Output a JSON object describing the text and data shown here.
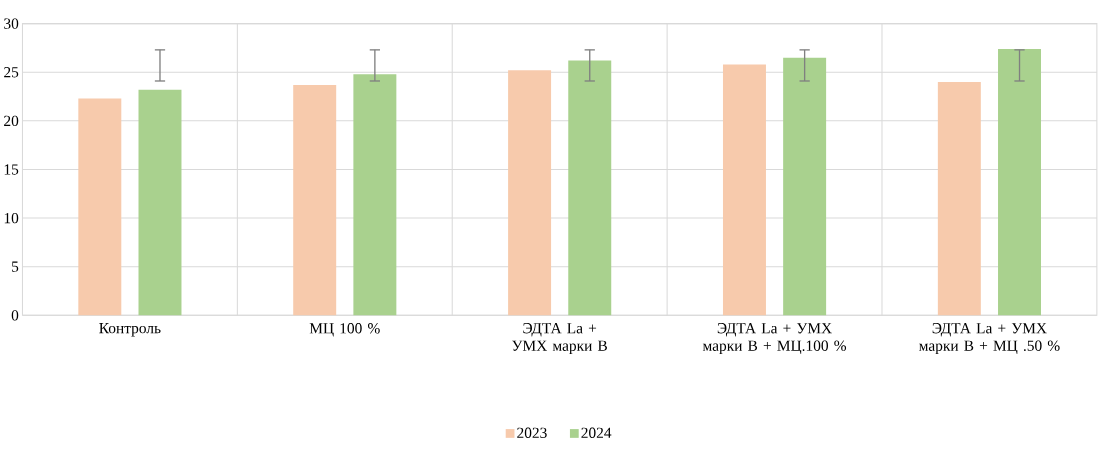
{
  "chart_data": {
    "type": "bar",
    "categories": [
      "Контроль",
      "МЦ 100 %",
      "ЭДТА La + УМХ марки В",
      "ЭДТА La + УМХ марки В + МЦ.100 %",
      "ЭДТА La + УМХ марки В + МЦ .50 %"
    ],
    "series": [
      {
        "name": "2023",
        "color": "#f7caac",
        "values": [
          22.3,
          23.7,
          25.2,
          25.8,
          24.0
        ]
      },
      {
        "name": "2024",
        "color": "#a9d18e",
        "values": [
          23.2,
          24.8,
          26.2,
          26.5,
          27.4
        ],
        "errors": [
          [
            24.1,
            27.3
          ],
          [
            24.1,
            27.3
          ],
          [
            24.1,
            27.3
          ],
          [
            24.1,
            27.3
          ],
          [
            24.1,
            27.3
          ]
        ]
      }
    ],
    "ylim": [
      0,
      30
    ],
    "yticks": [
      0,
      5,
      10,
      15,
      20,
      25,
      30
    ],
    "grid": true,
    "legend": "bottom"
  }
}
